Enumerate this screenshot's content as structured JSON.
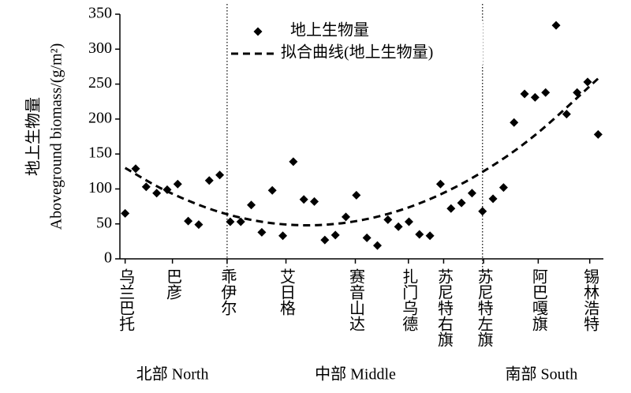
{
  "chart_data": {
    "type": "scatter",
    "y_label_cn": "地上生物量",
    "y_label": "Aboveground biomass/(g/m²)",
    "xlim": [
      0.5,
      46.5
    ],
    "ylim": [
      0,
      350
    ],
    "yticks": [
      0,
      50,
      100,
      150,
      200,
      250,
      300,
      350
    ],
    "xticks": [
      {
        "value": 1,
        "label": "乌兰巴托"
      },
      {
        "value": 5.5,
        "label": "巴彦"
      },
      {
        "value": 10.7,
        "label": "乖伊尔"
      },
      {
        "value": 16.3,
        "label": "艾日格"
      },
      {
        "value": 22.9,
        "label": "赛音山达"
      },
      {
        "value": 27.95,
        "label": "扎门乌德"
      },
      {
        "value": 31.3,
        "label": "苏尼特右旗"
      },
      {
        "value": 35.1,
        "label": "苏尼特左旗"
      },
      {
        "value": 40.3,
        "label": "阿巴嘎旗"
      },
      {
        "value": 45.2,
        "label": "锡林浩特"
      }
    ],
    "region_dividers": [
      10.7,
      35.0
    ],
    "regions": [
      {
        "label": "北部 North",
        "x": 5.5
      },
      {
        "label": "中部 Middle",
        "x": 22.9
      },
      {
        "label": "南部 South",
        "x": 40.6
      }
    ],
    "series": [
      {
        "name": "地上生物量",
        "color": "#000000",
        "marker": "diamond",
        "x": [
          1,
          2,
          3,
          4,
          5,
          6,
          7,
          8,
          9,
          10,
          11,
          12,
          13,
          14,
          15,
          16,
          17,
          18,
          19,
          20,
          21,
          22,
          23,
          24,
          25,
          26,
          27,
          28,
          29,
          30,
          31,
          32,
          33,
          34,
          35,
          36,
          37,
          38,
          39,
          40,
          41,
          42,
          43,
          44,
          45,
          46
        ],
        "values": [
          65,
          129,
          103,
          94,
          99,
          107,
          54,
          49,
          112,
          120,
          53,
          53,
          77,
          38,
          98,
          33,
          139,
          85,
          82,
          27,
          34,
          60,
          91,
          30,
          19,
          56,
          46,
          53,
          35,
          33,
          107,
          72,
          80,
          94,
          68,
          86,
          102,
          195,
          236,
          231,
          238,
          334,
          207,
          238,
          253,
          178
        ]
      },
      {
        "name": "拟合曲线(地上生物量)",
        "color": "#000000",
        "line": "dashed",
        "x": [
          1,
          5,
          10,
          15,
          20,
          25,
          30,
          35,
          40,
          46
        ],
        "values": [
          130,
          96.5,
          66.9,
          51,
          48.8,
          60.3,
          85.5,
          124.4,
          177,
          258
        ]
      }
    ]
  }
}
